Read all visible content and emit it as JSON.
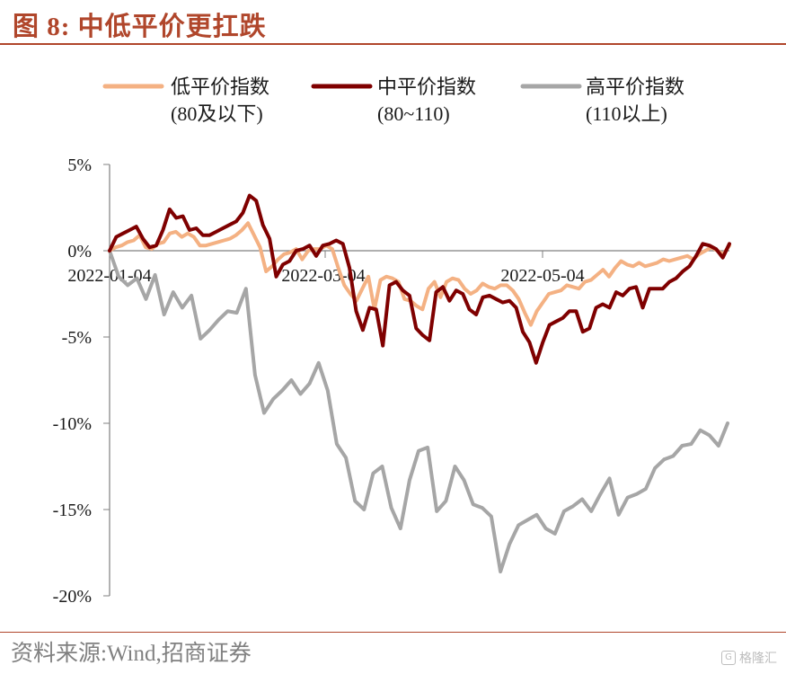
{
  "figure_title": "图 8:  中低平价更扛跌",
  "source": "资料来源:Wind,招商证券",
  "watermark": {
    "text": "格隆汇",
    "logo_glyph": "G"
  },
  "chart_data": {
    "type": "line",
    "title": "",
    "xlabel": "",
    "ylabel": "",
    "x_tick_labels": [
      "2022-01-04",
      "2022-03-04",
      "2022-05-04"
    ],
    "y_tick_values": [
      5,
      0,
      -5,
      -10,
      -15,
      -20
    ],
    "y_tick_labels": [
      "5%",
      "0%",
      "-5%",
      "-10%",
      "-15%",
      "-20%"
    ],
    "ylim": [
      -20,
      5
    ],
    "grid": false,
    "legend_position": "top",
    "series": [
      {
        "name": "低平价指数",
        "name_line2": "(80及以下)",
        "color": "#f4b183",
        "values": [
          0,
          0.2,
          0.3,
          0.5,
          0.6,
          0.9,
          0.2,
          0.1,
          0.4,
          0.5,
          1,
          1.1,
          0.8,
          1,
          0.8,
          0.3,
          0.3,
          0.4,
          0.5,
          0.6,
          0.7,
          0.9,
          1.2,
          1.6,
          0.9,
          0.2,
          -1.2,
          -0.9,
          -0.5,
          -0.2,
          -0.1,
          0.1,
          -0.5,
          0.0,
          0.1,
          0.1,
          0.3,
          0.1,
          -1.0,
          -2.0,
          -2.5,
          -2.9,
          -2.2,
          -1.5,
          -3.4,
          -1.7,
          -1.5,
          -1.6,
          -1.8,
          -2.8,
          -2.9,
          -3.2,
          -3.4,
          -2.2,
          -1.8,
          -2.7,
          -1.8,
          -1.6,
          -1.7,
          -2.2,
          -2.5,
          -2.3,
          -1.9,
          -2.1,
          -2.2,
          -2.0,
          -2.0,
          -2.3,
          -2.8,
          -3.6,
          -4.3,
          -3.5,
          -3.0,
          -2.5,
          -2.4,
          -2.3,
          -2.0,
          -2.1,
          -2.2,
          -1.8,
          -1.7,
          -1.4,
          -1.1,
          -1.5,
          -1.0,
          -0.6,
          -0.8,
          -0.9,
          -0.7,
          -0.9,
          -0.8,
          -0.7,
          -0.5,
          -0.6,
          -0.5,
          -0.4,
          -0.3,
          -0.5,
          -0.2,
          0.0,
          0.2,
          0.0,
          -0.2,
          0.3
        ]
      },
      {
        "name": "中平价指数",
        "name_line2": "(80~110)",
        "color": "#7f0000",
        "values": [
          0,
          0.8,
          1.0,
          1.2,
          1.4,
          0.7,
          0.2,
          0.3,
          1.2,
          2.4,
          1.9,
          2.0,
          1.2,
          1.3,
          0.9,
          0.9,
          1.1,
          1.3,
          1.5,
          1.7,
          2.2,
          3.2,
          2.9,
          1.5,
          0.7,
          -1.5,
          -0.8,
          -0.6,
          0.0,
          0.1,
          0.3,
          -0.3,
          0.3,
          0.4,
          0.6,
          0.4,
          -1.0,
          -3.5,
          -4.6,
          -3.3,
          -3.4,
          -5.5,
          -2.0,
          -1.8,
          -2.3,
          -2.6,
          -4.5,
          -4.9,
          -5.2,
          -2.4,
          -2.1,
          -2.9,
          -2.3,
          -2.5,
          -3.4,
          -3.7,
          -2.7,
          -2.6,
          -2.8,
          -3.0,
          -2.9,
          -3.3,
          -4.7,
          -5.3,
          -6.5,
          -5.3,
          -4.3,
          -4.1,
          -3.9,
          -3.5,
          -3.5,
          -4.7,
          -4.5,
          -3.3,
          -3.1,
          -3.3,
          -2.4,
          -2.6,
          -2.2,
          -2.1,
          -3.3,
          -2.2,
          -2.2,
          -2.2,
          -1.8,
          -1.6,
          -1.2,
          -0.9,
          -0.3,
          0.4,
          0.3,
          0.1,
          -0.4,
          0.4
        ]
      },
      {
        "name": "高平价指数",
        "name_line2": "(110以上)",
        "color": "#a6a6a6",
        "values": [
          0,
          -1.5,
          -2.0,
          -1.6,
          -2.8,
          -1.4,
          -3.7,
          -2.4,
          -3.3,
          -2.6,
          -5.1,
          -4.6,
          -4.0,
          -3.5,
          -3.6,
          -2.2,
          -7.2,
          -9.4,
          -8.6,
          -8.1,
          -7.5,
          -8.3,
          -7.7,
          -6.5,
          -8.1,
          -11.2,
          -12.0,
          -14.5,
          -15.0,
          -12.9,
          -12.5,
          -14.9,
          -16.1,
          -13.3,
          -11.6,
          -11.4,
          -15.1,
          -14.5,
          -12.5,
          -13.3,
          -14.7,
          -14.9,
          -15.4,
          -18.6,
          -17.0,
          -15.9,
          -15.6,
          -15.3,
          -16.1,
          -16.4,
          -15.1,
          -14.8,
          -14.4,
          -15.1,
          -14.1,
          -13.2,
          -15.3,
          -14.3,
          -14.1,
          -13.8,
          -12.6,
          -12.1,
          -11.9,
          -11.3,
          -11.2,
          -10.4,
          -10.7,
          -11.3,
          -10.0
        ]
      }
    ]
  }
}
